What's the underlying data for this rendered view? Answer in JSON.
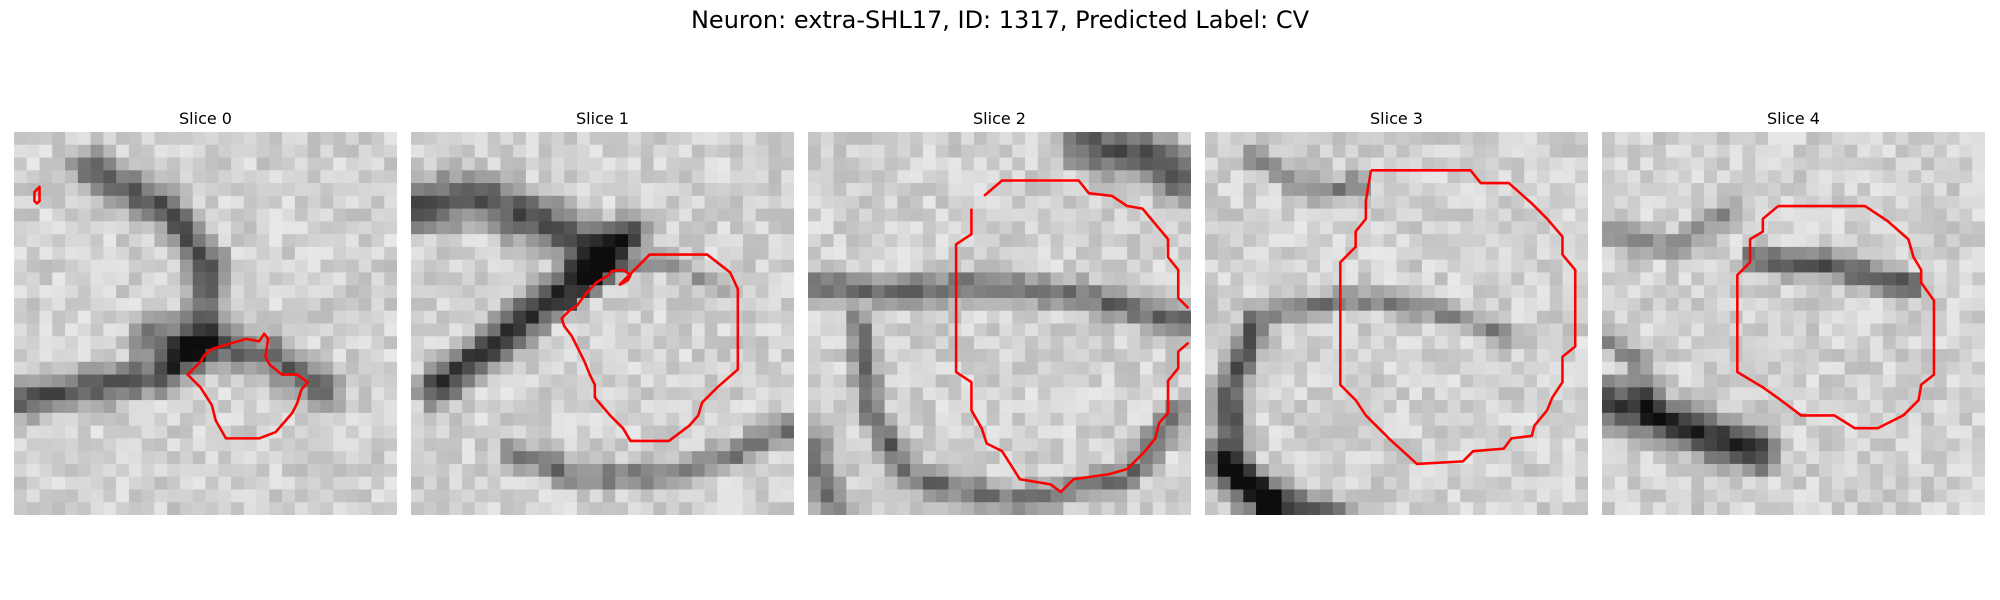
{
  "figure": {
    "title": "Neuron: extra-SHL17, ID: 1317, Predicted Label: CV",
    "contour_color": "#ff0000"
  },
  "panels": [
    {
      "title": "Slice 0",
      "image_seed": 11,
      "contours": [
        [
          [
            18,
            45
          ],
          [
            20,
            43
          ],
          [
            20,
            54
          ],
          [
            18,
            56
          ],
          [
            16,
            54
          ],
          [
            16,
            47
          ]
        ],
        [
          [
            155,
            170
          ],
          [
            182,
            162
          ],
          [
            192,
            164
          ],
          [
            196,
            158
          ],
          [
            199,
            162
          ],
          [
            197,
            176
          ],
          [
            200,
            182
          ],
          [
            210,
            190
          ],
          [
            222,
            190
          ],
          [
            230,
            196
          ],
          [
            225,
            202
          ],
          [
            222,
            212
          ],
          [
            218,
            220
          ],
          [
            205,
            235
          ],
          [
            192,
            240
          ],
          [
            166,
            240
          ],
          [
            158,
            226
          ],
          [
            155,
            214
          ],
          [
            146,
            200
          ],
          [
            136,
            190
          ],
          [
            146,
            180
          ],
          [
            149,
            175
          ]
        ]
      ]
    },
    {
      "title": "Slice 1",
      "image_seed": 23,
      "contours": [
        [
          [
            163,
            120
          ],
          [
            187,
            96
          ],
          [
            232,
            96
          ],
          [
            250,
            110
          ],
          [
            256,
            123
          ],
          [
            256,
            186
          ],
          [
            240,
            200
          ],
          [
            228,
            212
          ],
          [
            225,
            222
          ],
          [
            218,
            230
          ],
          [
            202,
            242
          ],
          [
            172,
            242
          ],
          [
            166,
            232
          ],
          [
            156,
            222
          ],
          [
            144,
            208
          ],
          [
            144,
            198
          ],
          [
            140,
            190
          ],
          [
            136,
            180
          ],
          [
            130,
            168
          ],
          [
            126,
            160
          ],
          [
            120,
            152
          ],
          [
            118,
            146
          ],
          [
            124,
            140
          ],
          [
            130,
            136
          ],
          [
            136,
            128
          ],
          [
            145,
            118
          ],
          [
            150,
            115
          ],
          [
            155,
            112
          ],
          [
            157,
            109
          ],
          [
            166,
            108
          ],
          [
            172,
            112
          ],
          [
            170,
            116
          ]
        ]
      ]
    },
    {
      "title": "Slice 2",
      "image_seed": 37,
      "contours": [
        [
          [
            138,
            50
          ],
          [
            152,
            38
          ],
          [
            212,
            38
          ],
          [
            220,
            48
          ],
          [
            238,
            50
          ],
          [
            250,
            58
          ],
          [
            262,
            60
          ],
          [
            282,
            84
          ],
          [
            282,
            98
          ],
          [
            290,
            108
          ],
          [
            290,
            130
          ],
          [
            298,
            138
          ]
        ],
        [
          [
            298,
            165
          ],
          [
            290,
            172
          ],
          [
            290,
            185
          ],
          [
            282,
            195
          ],
          [
            282,
            220
          ],
          [
            275,
            228
          ],
          [
            272,
            240
          ],
          [
            264,
            250
          ],
          [
            250,
            264
          ],
          [
            236,
            268
          ],
          [
            208,
            272
          ],
          [
            198,
            282
          ],
          [
            190,
            276
          ],
          [
            166,
            272
          ],
          [
            152,
            250
          ],
          [
            140,
            244
          ],
          [
            136,
            232
          ],
          [
            128,
            218
          ],
          [
            128,
            196
          ],
          [
            116,
            188
          ],
          [
            116,
            88
          ],
          [
            128,
            80
          ],
          [
            128,
            60
          ]
        ]
      ]
    },
    {
      "title": "Slice 3",
      "image_seed": 49,
      "contours": [
        [
          [
            130,
            30
          ],
          [
            208,
            30
          ],
          [
            216,
            40
          ],
          [
            238,
            40
          ],
          [
            256,
            56
          ],
          [
            268,
            68
          ],
          [
            280,
            82
          ],
          [
            280,
            96
          ],
          [
            290,
            108
          ],
          [
            290,
            168
          ],
          [
            280,
            176
          ],
          [
            280,
            196
          ],
          [
            272,
            208
          ],
          [
            268,
            218
          ],
          [
            258,
            230
          ],
          [
            256,
            238
          ],
          [
            240,
            240
          ],
          [
            234,
            248
          ],
          [
            210,
            250
          ],
          [
            202,
            258
          ],
          [
            166,
            260
          ],
          [
            144,
            240
          ],
          [
            126,
            222
          ],
          [
            118,
            210
          ],
          [
            106,
            198
          ],
          [
            106,
            102
          ],
          [
            118,
            90
          ],
          [
            118,
            78
          ],
          [
            126,
            68
          ],
          [
            126,
            54
          ]
        ]
      ]
    },
    {
      "title": "Slice 4",
      "image_seed": 61,
      "contours": [
        [
          [
            138,
            58
          ],
          [
            206,
            58
          ],
          [
            224,
            70
          ],
          [
            240,
            84
          ],
          [
            244,
            98
          ],
          [
            250,
            108
          ],
          [
            250,
            118
          ],
          [
            260,
            132
          ],
          [
            260,
            190
          ],
          [
            250,
            198
          ],
          [
            248,
            210
          ],
          [
            236,
            222
          ],
          [
            220,
            230
          ],
          [
            216,
            232
          ],
          [
            198,
            232
          ],
          [
            182,
            222
          ],
          [
            156,
            222
          ],
          [
            148,
            216
          ],
          [
            140,
            210
          ],
          [
            126,
            200
          ],
          [
            106,
            188
          ],
          [
            106,
            112
          ],
          [
            116,
            102
          ],
          [
            116,
            84
          ],
          [
            126,
            78
          ],
          [
            126,
            68
          ]
        ]
      ]
    }
  ]
}
